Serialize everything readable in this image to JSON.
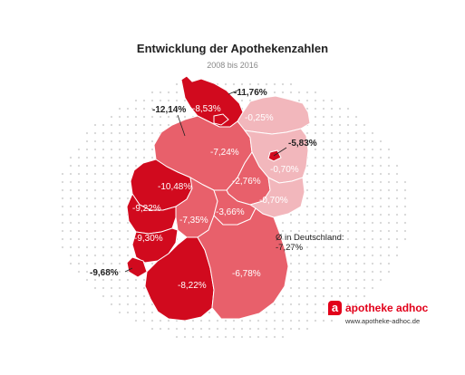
{
  "title": "Entwicklung der Apothekenzahlen",
  "subtitle": "2008 bis 2016",
  "regions": [
    {
      "id": "schleswig-holstein",
      "label": "-8,53%",
      "value": -8.53
    },
    {
      "id": "hamburg",
      "label": "-11,76%",
      "value": -11.76
    },
    {
      "id": "bremen",
      "label": "-12,14%",
      "value": -12.14
    },
    {
      "id": "mecklenburg-vorpommern",
      "label": "-0,25%",
      "value": -0.25
    },
    {
      "id": "niedersachsen",
      "label": "-7,24%",
      "value": -7.24
    },
    {
      "id": "berlin",
      "label": "-5,83%",
      "value": -5.83
    },
    {
      "id": "brandenburg",
      "label": "-0,70%",
      "value": -0.7
    },
    {
      "id": "sachsen-anhalt",
      "label": "-2,76%",
      "value": -2.76
    },
    {
      "id": "sachsen",
      "label": "-0,70%",
      "value": -0.7
    },
    {
      "id": "nordrhein-westfalen",
      "label": "-10,48%",
      "value": -10.48
    },
    {
      "id": "hessen",
      "label": "-7,35%",
      "value": -7.35
    },
    {
      "id": "thueringen",
      "label": "-3,66%",
      "value": -3.66
    },
    {
      "id": "rheinland-pfalz",
      "label": "-9,22%",
      "value": -9.22
    },
    {
      "id": "saarland",
      "label": "-9,68%",
      "value": -9.68
    },
    {
      "id": "baden-wuerttemberg",
      "label": "-8,22%",
      "value": -8.22
    },
    {
      "id": "bayern",
      "label": "-6,78%",
      "value": -6.78
    },
    {
      "id": "rhein-main-suedwest",
      "label": "-9,30%",
      "value": -9.3
    }
  ],
  "note": {
    "line1": "Ø in Deutschland:",
    "line2": "-7,27%"
  },
  "brand": {
    "logo_letter": "a",
    "name": "apotheke adhoc",
    "url": "www.apotheke-adhoc.de"
  },
  "colors": {
    "darkest": "#d10a1e",
    "dark": "#df3a48",
    "medium": "#e8606b",
    "light": "#f2b7bc",
    "dots": "#d6d6d6",
    "brand": "#e2001a"
  }
}
